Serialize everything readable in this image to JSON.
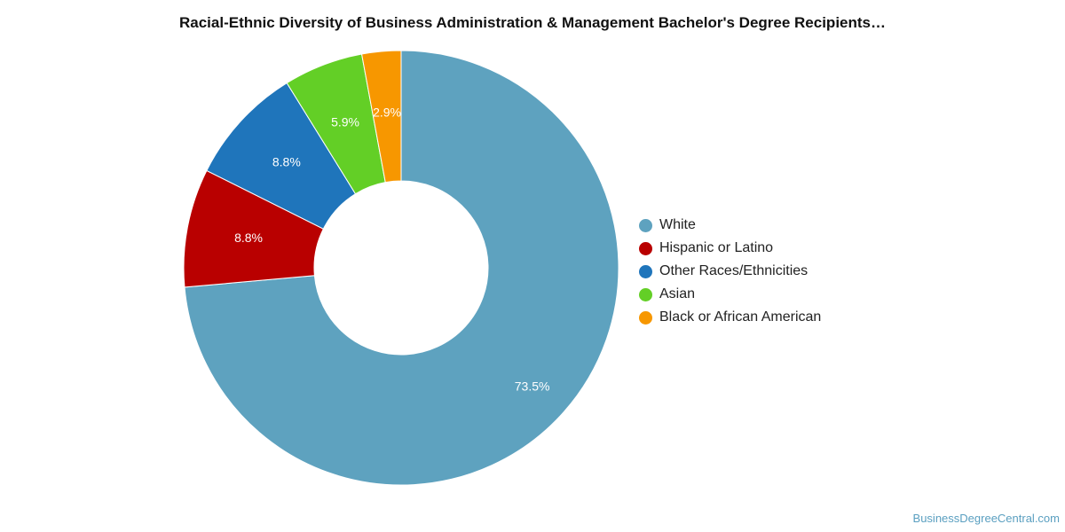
{
  "chart_data": {
    "type": "pie",
    "variant": "donut",
    "title": "Racial-Ethnic Diversity of Business Administration & Management Bachelor's Degree Recipients…",
    "unit": "%",
    "legend_position": "right",
    "slices": [
      {
        "name": "White",
        "value": 73.5,
        "label": "73.5%",
        "color": "#5ea2bf"
      },
      {
        "name": "Hispanic or Latino",
        "value": 8.8,
        "label": "8.8%",
        "color": "#b90000"
      },
      {
        "name": "Other Races/Ethnicities",
        "value": 8.8,
        "label": "8.8%",
        "color": "#1f75bb"
      },
      {
        "name": "Asian",
        "value": 5.9,
        "label": "5.9%",
        "color": "#63cf26"
      },
      {
        "name": "Black or African American",
        "value": 2.9,
        "label": "2.9%",
        "color": "#f79700"
      }
    ]
  },
  "footer": {
    "source": "BusinessDegreeCentral.com"
  }
}
